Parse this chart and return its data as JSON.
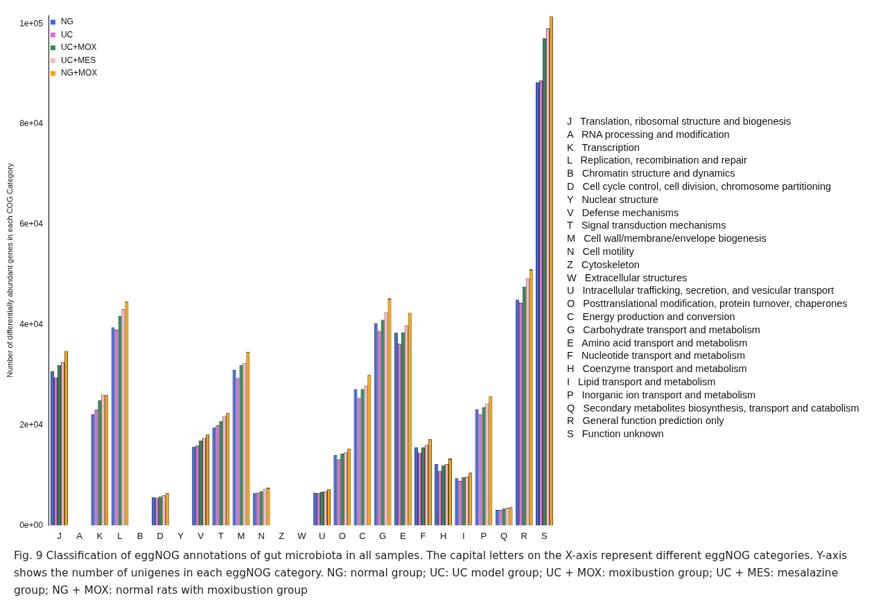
{
  "chart_data": {
    "type": "bar",
    "ylabel": "Number of differentially abundant genes in each COG Category",
    "categories": [
      "J",
      "A",
      "K",
      "L",
      "B",
      "D",
      "Y",
      "V",
      "T",
      "M",
      "N",
      "Z",
      "W",
      "U",
      "O",
      "C",
      "G",
      "E",
      "F",
      "H",
      "I",
      "P",
      "Q",
      "R",
      "S"
    ],
    "series": [
      {
        "name": "NG",
        "color": "#4169e1",
        "values": [
          30800,
          0,
          22200,
          39500,
          0,
          5600,
          0,
          15700,
          19500,
          31000,
          6400,
          0,
          0,
          6500,
          14000,
          27200,
          40300,
          38400,
          15600,
          12200,
          9400,
          23200,
          3100,
          45000,
          88300
        ]
      },
      {
        "name": "UC",
        "color": "#da70d6",
        "values": [
          29500,
          0,
          23100,
          39000,
          0,
          5500,
          0,
          15900,
          20000,
          29400,
          6500,
          0,
          0,
          6400,
          13200,
          25400,
          38800,
          36200,
          14500,
          10900,
          8900,
          22200,
          3100,
          44400,
          88700
        ]
      },
      {
        "name": "UC+MOX",
        "color": "#2e8b57",
        "values": [
          32000,
          0,
          25000,
          41800,
          0,
          5800,
          0,
          16900,
          20800,
          32000,
          6800,
          0,
          0,
          6700,
          14300,
          27200,
          41000,
          38500,
          15600,
          12000,
          9600,
          23600,
          3400,
          47600,
          97100
        ]
      },
      {
        "name": "UC+MES",
        "color": "#ffb6c1",
        "values": [
          32500,
          0,
          26100,
          43100,
          0,
          6000,
          0,
          17500,
          21800,
          32400,
          7300,
          0,
          0,
          6900,
          14600,
          27900,
          42500,
          39900,
          16100,
          12200,
          9700,
          24300,
          3500,
          49300,
          99100
        ]
      },
      {
        "name": "NG+MOX",
        "color": "#ffa500",
        "values": [
          34800,
          0,
          26000,
          44700,
          0,
          6400,
          0,
          18100,
          22400,
          34600,
          7500,
          0,
          0,
          7200,
          15300,
          30000,
          45200,
          42400,
          17200,
          13300,
          10500,
          25700,
          3600,
          51000,
          101500
        ]
      }
    ],
    "ylim": [
      0,
      101700
    ],
    "yticks": [
      {
        "value": 0,
        "label": "0e+00"
      },
      {
        "value": 20000,
        "label": "2e+04"
      },
      {
        "value": 40000,
        "label": "4e+04"
      },
      {
        "value": 60000,
        "label": "6e+04"
      },
      {
        "value": 80000,
        "label": "8e+04"
      },
      {
        "value": 100000,
        "label": "1e+05"
      }
    ],
    "grid": false,
    "legend": "top left",
    "annotations": [
      "J   Translation, ribosomal structure and biogenesis",
      "A   RNA processing and modification",
      "K   Transcription",
      "L   Replication, recombination and repair",
      "B   Chromatin structure and dynamics",
      "D   Cell cycle control, cell division, chromosome partitioning",
      "Y   Nuclear structure",
      "V   Defense mechanisms",
      "T   Signal transduction mechanisms",
      "M   Cell wall/membrane/envelope biogenesis",
      "N   Cell motility",
      "Z   Cytoskeleton",
      "W   Extracellular structures",
      "U   Intracellular trafficking, secretion, and vesicular transport",
      "O   Posttranslational modification, protein turnover, chaperones",
      "C   Energy production and conversion",
      "G   Carbohydrate transport and metabolism",
      "E   Amino acid transport and metabolism",
      "F   Nucleotide transport and metabolism",
      "H   Coenzyme transport and metabolism",
      "I   Lipid transport and metabolism",
      "P   Inorganic ion transport and metabolism",
      "Q   Secondary metabolites biosynthesis, transport and catabolism",
      "R   General function prediction only",
      "S   Function unknown",
      "Fig. 9  Classification of eggNOG annotations of gut microbiota in all samples. The capital letters on the X-axis represent different eggNOG categories. Y-axis shows the number of unigenes in each eggNOG category. NG: normal group; UC: UC model group; UC + MOX: moxibustion group; UC + MES: mesalazine group; NG + MOX: normal rats with moxibustion group"
    ]
  }
}
